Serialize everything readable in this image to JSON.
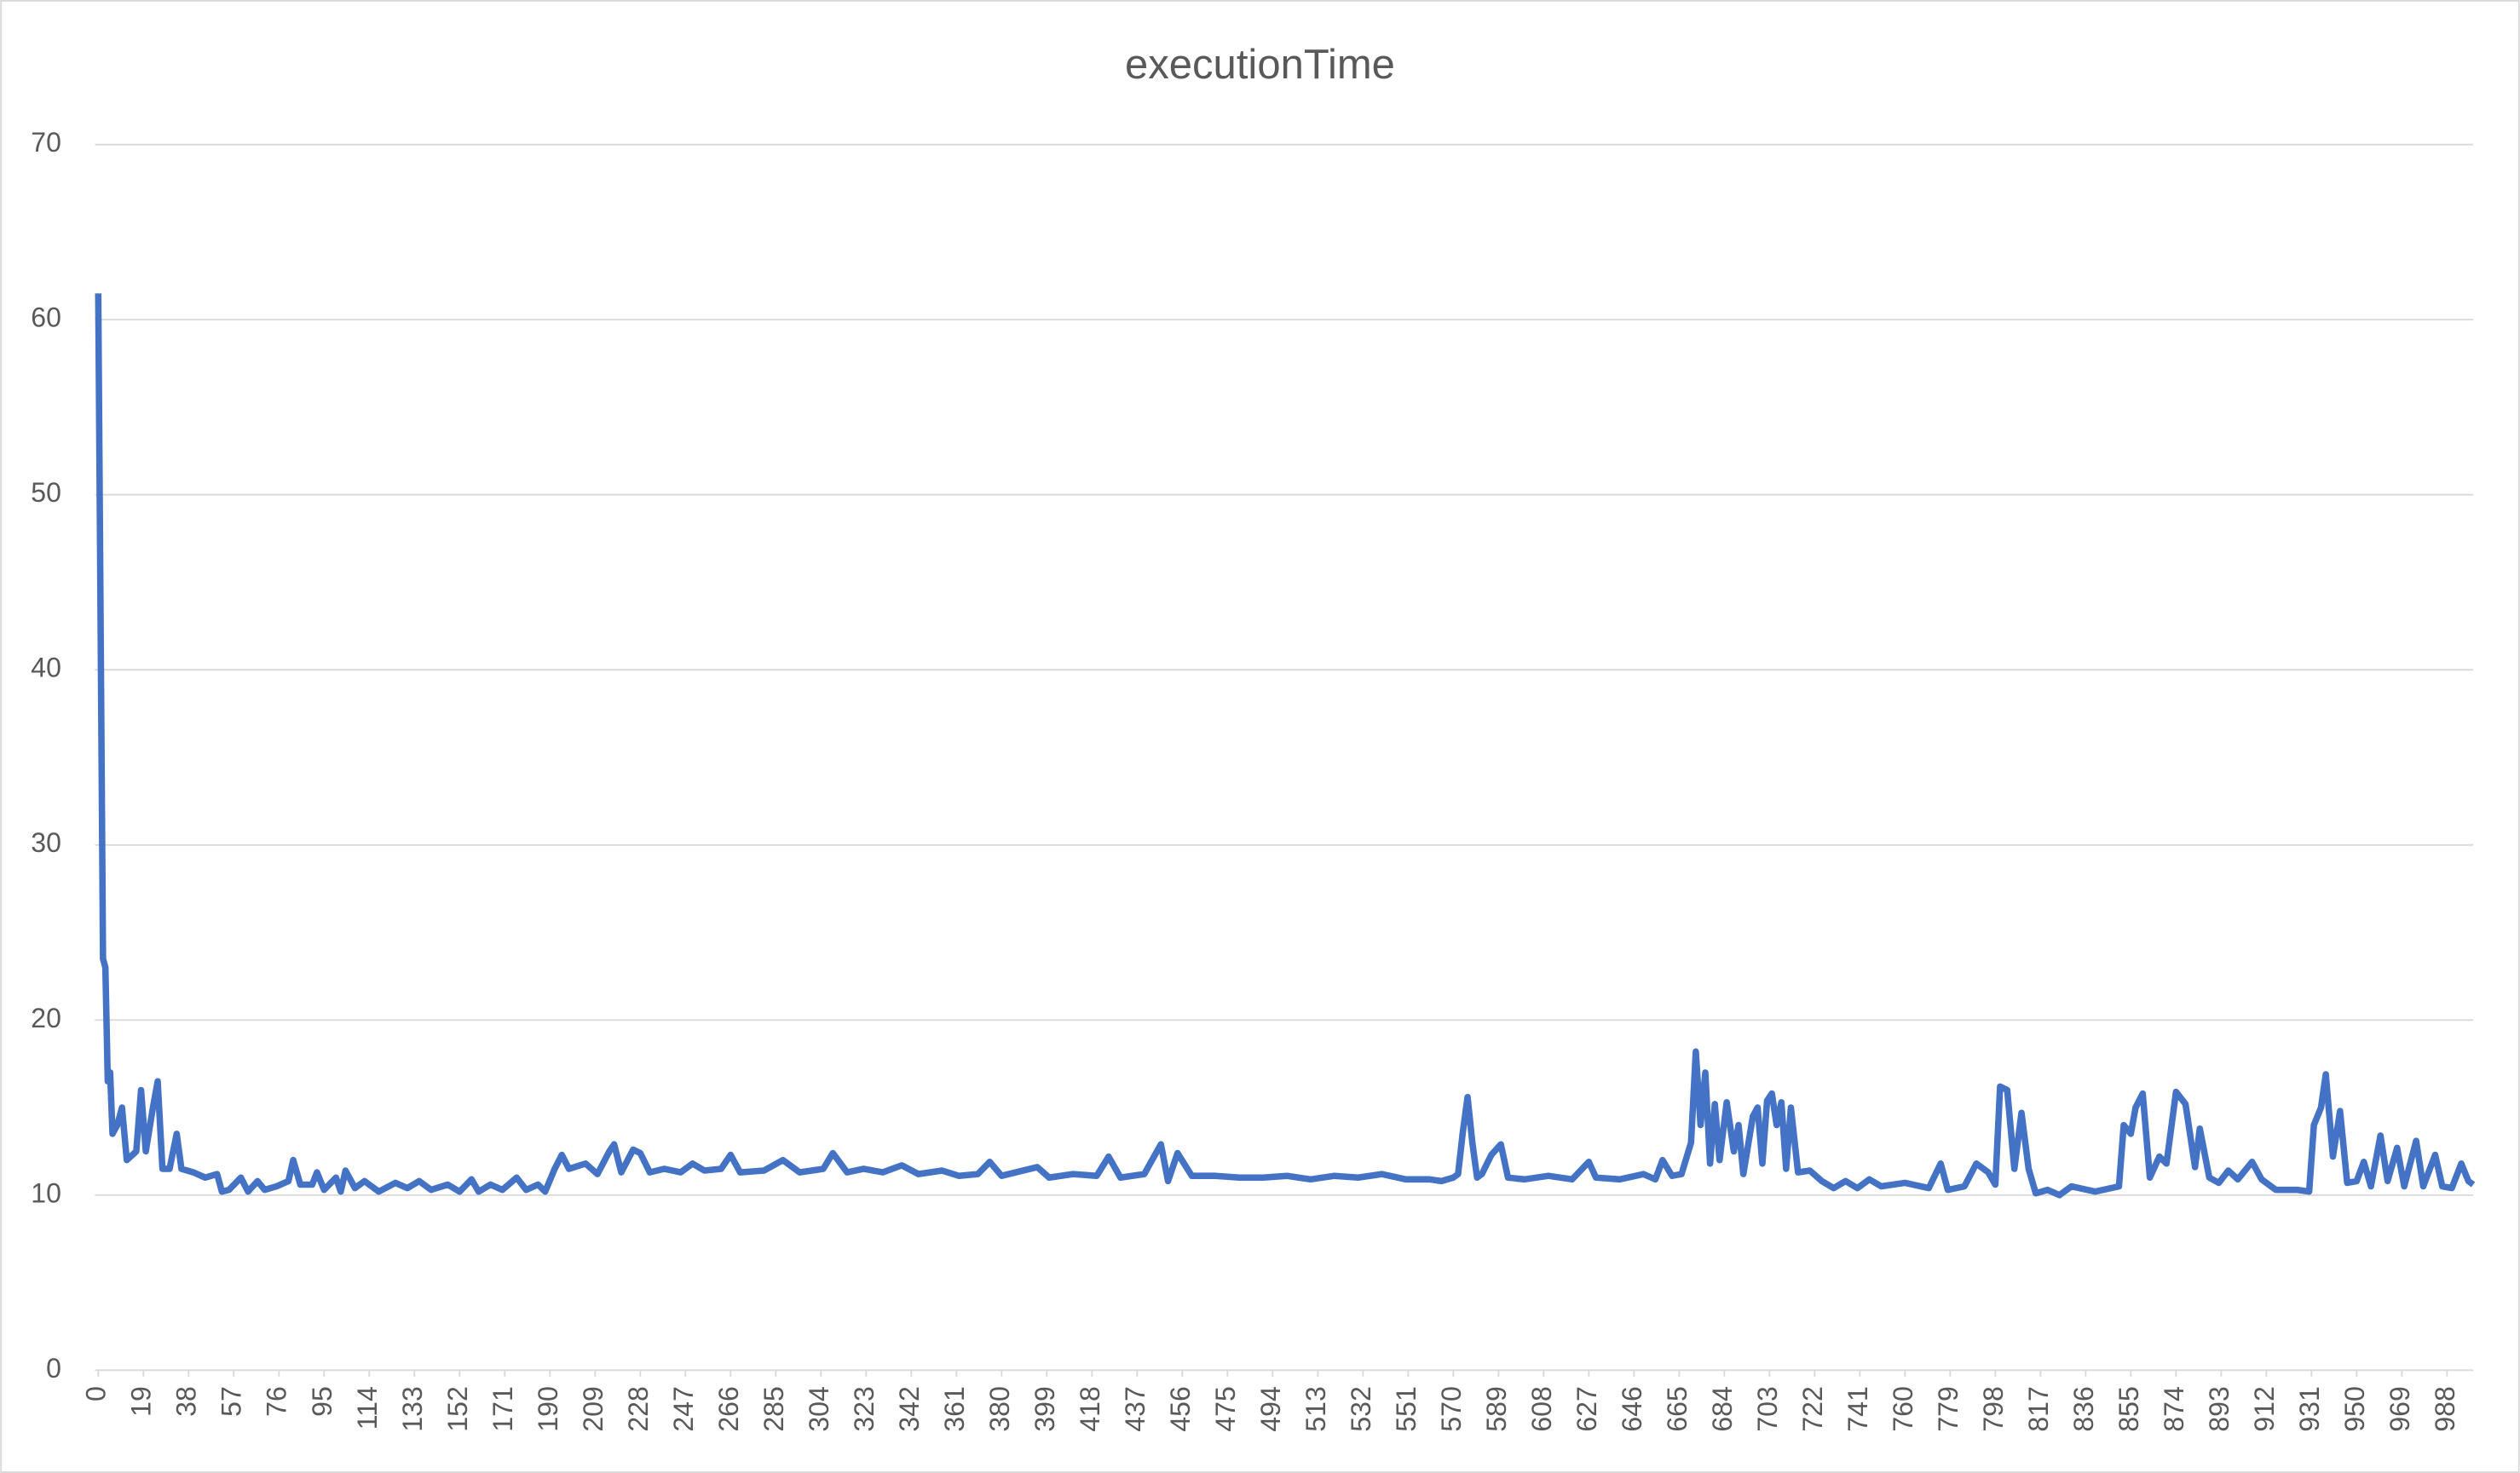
{
  "chart_data": {
    "type": "line",
    "title": "executionTime",
    "x": [
      0,
      2,
      3,
      4,
      5,
      6,
      8,
      10,
      12,
      16,
      18,
      20,
      23,
      25,
      27,
      30,
      33,
      35,
      40,
      45,
      50,
      52,
      55,
      60,
      63,
      67,
      70,
      75,
      80,
      82,
      85,
      90,
      92,
      95,
      100,
      102,
      104,
      108,
      112,
      118,
      125,
      130,
      135,
      140,
      147,
      152,
      157,
      160,
      165,
      170,
      176,
      180,
      185,
      188,
      192,
      195,
      198,
      205,
      210,
      215,
      217,
      220,
      225,
      228,
      232,
      238,
      245,
      250,
      255,
      262,
      266,
      270,
      280,
      288,
      295,
      305,
      309,
      315,
      322,
      330,
      338,
      345,
      355,
      362,
      370,
      375,
      380,
      395,
      400,
      410,
      420,
      425,
      430,
      440,
      447,
      450,
      454,
      460,
      470,
      480,
      490,
      500,
      510,
      520,
      530,
      540,
      550,
      560,
      565,
      570,
      572,
      574,
      576,
      578,
      580,
      582,
      586,
      590,
      593,
      600,
      610,
      620,
      627,
      630,
      640,
      650,
      655,
      658,
      662,
      666,
      670,
      672,
      674,
      676,
      678,
      680,
      682,
      685,
      688,
      690,
      692,
      696,
      698,
      700,
      702,
      704,
      706,
      708,
      710,
      712,
      715,
      720,
      725,
      730,
      735,
      740,
      745,
      750,
      760,
      770,
      775,
      778,
      785,
      790,
      795,
      798,
      800,
      803,
      806,
      809,
      812,
      815,
      820,
      825,
      830,
      840,
      850,
      852,
      855,
      857,
      860,
      863,
      867,
      870,
      874,
      878,
      882,
      884,
      888,
      892,
      896,
      900,
      906,
      910,
      916,
      925,
      930,
      932,
      935,
      937,
      940,
      943,
      946,
      950,
      953,
      956,
      960,
      963,
      967,
      970,
      975,
      978,
      983,
      986,
      990,
      994,
      997,
      999
    ],
    "series": [
      {
        "name": "executionTime",
        "color": "#4472c4",
        "values": [
          61.5,
          23.5,
          23,
          16.5,
          17,
          13.5,
          14,
          15,
          12,
          12.5,
          16,
          12.5,
          15,
          16.5,
          11.5,
          11.5,
          13.5,
          11.5,
          11.3,
          11,
          11.2,
          10.2,
          10.3,
          11,
          10.2,
          10.8,
          10.3,
          10.5,
          10.8,
          12,
          10.6,
          10.6,
          11.3,
          10.3,
          11,
          10.2,
          11.4,
          10.4,
          10.8,
          10.2,
          10.7,
          10.4,
          10.8,
          10.3,
          10.6,
          10.2,
          10.9,
          10.2,
          10.6,
          10.3,
          11,
          10.3,
          10.6,
          10.2,
          11.5,
          12.3,
          11.5,
          11.8,
          11.2,
          12.5,
          12.9,
          11.3,
          12.6,
          12.4,
          11.3,
          11.5,
          11.3,
          11.8,
          11.4,
          11.5,
          12.3,
          11.3,
          11.4,
          12,
          11.3,
          11.5,
          12.4,
          11.3,
          11.5,
          11.3,
          11.7,
          11.2,
          11.4,
          11.1,
          11.2,
          11.9,
          11.1,
          11.6,
          11,
          11.2,
          11.1,
          12.2,
          11,
          11.2,
          12.9,
          10.8,
          12.4,
          11.1,
          11.1,
          11,
          11,
          11.1,
          10.9,
          11.1,
          11,
          11.2,
          10.9,
          10.9,
          10.8,
          11,
          11.2,
          13.6,
          15.6,
          13,
          11,
          11.2,
          12.3,
          12.9,
          11,
          10.9,
          11.1,
          10.9,
          11.9,
          11,
          10.9,
          11.2,
          10.9,
          12,
          11.1,
          11.2,
          13,
          18.2,
          14,
          17,
          11.8,
          15.2,
          12,
          15.3,
          12.5,
          14,
          11.2,
          14.5,
          15,
          11.8,
          15.4,
          15.8,
          14,
          15.3,
          11.5,
          15,
          11.3,
          11.4,
          10.8,
          10.4,
          10.8,
          10.4,
          10.9,
          10.5,
          10.7,
          10.4,
          11.8,
          10.3,
          10.5,
          11.8,
          11.3,
          10.6,
          16.2,
          16,
          11.5,
          14.7,
          11.5,
          10.1,
          10.3,
          10,
          10.5,
          10.2,
          10.5,
          14,
          13.5,
          15,
          15.8,
          11,
          12.2,
          11.8,
          15.9,
          15.2,
          11.6,
          13.8,
          11,
          10.7,
          11.4,
          10.9,
          11.9,
          10.9,
          10.3,
          10.3,
          10.2,
          14,
          15,
          16.9,
          12.2,
          14.8,
          10.7,
          10.8,
          11.9,
          10.5,
          13.4,
          10.8,
          12.7,
          10.5,
          13.1,
          10.5,
          12.3,
          10.5,
          10.4,
          11.8,
          10.8,
          10.6
        ]
      }
    ],
    "xlim": [
      0,
      999
    ],
    "xticks": [
      0,
      19,
      38,
      57,
      76,
      95,
      114,
      133,
      152,
      171,
      190,
      209,
      228,
      247,
      266,
      285,
      304,
      323,
      342,
      361,
      380,
      399,
      418,
      437,
      456,
      475,
      494,
      513,
      532,
      551,
      570,
      589,
      608,
      627,
      646,
      665,
      684,
      703,
      722,
      741,
      760,
      779,
      798,
      817,
      836,
      855,
      874,
      893,
      912,
      931,
      950,
      969,
      988
    ],
    "ylim": [
      0,
      70
    ],
    "yticks": [
      0,
      10,
      20,
      30,
      40,
      50,
      60,
      70
    ],
    "grid": true
  }
}
